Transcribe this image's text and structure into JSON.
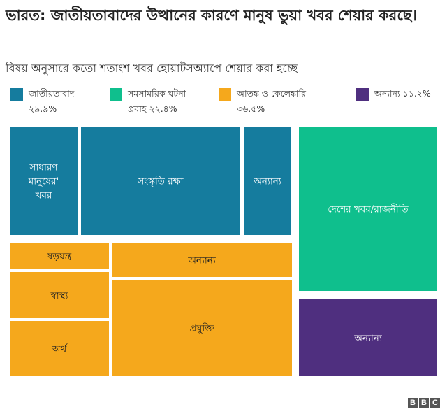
{
  "title": "ভারত: জাতীয়তাবাদের উত্থানের কারণে মানুষ ভুয়া খবর শেয়ার করছে।",
  "subtitle": "বিষয় অনুসারে কতো শতাংশ খবর হোয়াটসঅ্যাপে শেয়ার করা হচ্ছে",
  "legend": [
    {
      "label": "জাতীয়তাবাদ",
      "pct": "২৯.৯%",
      "color": "#157c9e"
    },
    {
      "label": "সমসাময়িক ঘটনা",
      "pct": "প্রবাহ ২২.৪%",
      "color": "#0fbf8d"
    },
    {
      "label": "আতঙ্ক ও কেলেঙ্কারি",
      "pct": "৩৬.৫%",
      "color": "#f5a81c"
    },
    {
      "label": "অন্যান্য ১১.২%",
      "pct": "",
      "color": "#4f2f7f"
    }
  ],
  "chart_data": {
    "type": "treemap",
    "groups": [
      {
        "name": "জাতীয়তাবাদ",
        "share": 29.9,
        "color": "#157c9e",
        "items": [
          {
            "label": "সাধারণ মানুষের' খবর"
          },
          {
            "label": "সংস্কৃতি রক্ষা"
          },
          {
            "label": "অন্যান্য"
          }
        ]
      },
      {
        "name": "আতঙ্ক ও কেলেঙ্কারি",
        "share": 36.5,
        "color": "#f5a81c",
        "items": [
          {
            "label": "ষড়যন্ত্র"
          },
          {
            "label": "স্বাস্থ্য"
          },
          {
            "label": "অর্থ"
          },
          {
            "label": "অন্যান্য"
          },
          {
            "label": "প্রযুক্তি"
          }
        ]
      },
      {
        "name": "সমসাময়িক ঘটনা প্রবাহ",
        "share": 22.4,
        "color": "#0fbf8d",
        "items": [
          {
            "label": "দেশের খবর/রাজনীতি"
          }
        ]
      },
      {
        "name": "অন্যান্য",
        "share": 11.2,
        "color": "#4f2f7f",
        "items": [
          {
            "label": "অন্যান্য"
          }
        ]
      }
    ]
  },
  "footer": {
    "logo_letters": [
      "B",
      "B",
      "C"
    ]
  }
}
